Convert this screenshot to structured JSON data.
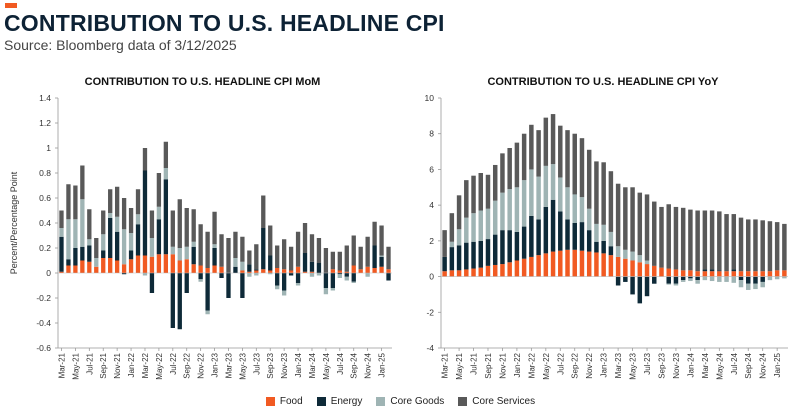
{
  "header": {
    "title": "CONTRIBUTION TO U.S. HEADLINE CPI",
    "subtitle": "Source: Bloomberg data of 3/12/2025"
  },
  "colors": {
    "accent": "#f15a22",
    "title": "#0d2235",
    "food": "#f15a22",
    "energy": "#0e2a38",
    "core_goods": "#9fb4b4",
    "core_services": "#595959"
  },
  "legend": [
    {
      "key": "food",
      "label": "Food",
      "color": "#f15a22"
    },
    {
      "key": "energy",
      "label": "Energy",
      "color": "#0e2a38"
    },
    {
      "key": "core_goods",
      "label": "Core Goods",
      "color": "#9fb4b4"
    },
    {
      "key": "core_services",
      "label": "Core Services",
      "color": "#595959"
    }
  ],
  "chart_data": [
    {
      "id": "mom",
      "type": "stacked-bar",
      "title": "CONTRIBUTION TO U.S. HEADLINE CPI MoM",
      "xlabel": "",
      "ylabel": "Percent/Percentage Point",
      "ylim": [
        -0.6,
        1.4
      ],
      "yticks": [
        -0.6,
        -0.4,
        -0.2,
        0,
        0.2,
        0.4,
        0.6,
        0.8,
        1,
        1.2,
        1.4
      ],
      "ytick_labels": [
        "-0.6",
        "-0.4",
        "-0.2",
        "0",
        "0.2",
        "0.4",
        "0.6",
        "0.8",
        "1",
        "1.2",
        "1.4"
      ],
      "categories": [
        "Mar-21",
        "Apr-21",
        "May-21",
        "Jun-21",
        "Jul-21",
        "Aug-21",
        "Sep-21",
        "Oct-21",
        "Nov-21",
        "Dec-21",
        "Jan-22",
        "Feb-22",
        "Mar-22",
        "Apr-22",
        "May-22",
        "Jun-22",
        "Jul-22",
        "Aug-22",
        "Sep-22",
        "Oct-22",
        "Nov-22",
        "Dec-22",
        "Jan-23",
        "Feb-23",
        "Mar-23",
        "Apr-23",
        "May-23",
        "Jun-23",
        "Jul-23",
        "Aug-23",
        "Sep-23",
        "Oct-23",
        "Nov-23",
        "Dec-23",
        "Jan-24",
        "Feb-24",
        "Mar-24",
        "Apr-24",
        "May-24",
        "Jun-24",
        "Jul-24",
        "Aug-24",
        "Sep-24",
        "Oct-24",
        "Nov-24",
        "Dec-24",
        "Jan-25",
        "Feb-25"
      ],
      "x_tick_labels": [
        "Mar-21",
        "May-21",
        "Jul-21",
        "Sep-21",
        "Nov-21",
        "Jan-22",
        "Mar-22",
        "May-22",
        "Jul-22",
        "Sep-22",
        "Nov-22",
        "Jan-23",
        "Mar-23",
        "May-23",
        "Jul-23",
        "Sep-23",
        "Nov-23",
        "Jan-24",
        "Mar-24",
        "May-24",
        "Jul-24",
        "Sep-24",
        "Nov-24",
        "Jan-25"
      ],
      "series": [
        {
          "name": "Food",
          "color": "#f15a22",
          "values": [
            0.01,
            0.06,
            0.06,
            0.1,
            0.09,
            0.05,
            0.12,
            0.12,
            0.1,
            0.07,
            0.11,
            0.14,
            0.14,
            0.13,
            0.15,
            0.15,
            0.15,
            0.1,
            0.11,
            0.07,
            0.06,
            0.04,
            0.06,
            0.05,
            0.0,
            0.0,
            0.02,
            0.01,
            0.02,
            0.03,
            0.02,
            0.04,
            0.03,
            0.02,
            0.05,
            0.01,
            0.01,
            0.0,
            0.0,
            0.03,
            0.02,
            0.01,
            0.06,
            0.03,
            0.05,
            0.04,
            0.05,
            0.03
          ]
        },
        {
          "name": "Energy",
          "color": "#0e2a38",
          "values": [
            0.28,
            0.05,
            0.14,
            0.11,
            0.13,
            0.0,
            0.06,
            0.32,
            0.23,
            -0.01,
            0.07,
            0.25,
            0.68,
            -0.16,
            0.28,
            0.6,
            -0.44,
            -0.45,
            -0.16,
            0.14,
            -0.05,
            -0.3,
            0.14,
            -0.04,
            -0.2,
            0.05,
            -0.2,
            0.06,
            0.01,
            0.33,
            0.12,
            -0.1,
            -0.14,
            -0.02,
            -0.08,
            0.15,
            0.08,
            0.08,
            -0.12,
            -0.12,
            -0.01,
            -0.03,
            -0.07,
            0.0,
            0.0,
            0.18,
            0.08,
            -0.06
          ]
        },
        {
          "name": "Core Goods",
          "color": "#9fb4b4",
          "values": [
            0.07,
            0.32,
            0.23,
            0.38,
            0.05,
            0.07,
            0.13,
            0.04,
            0.12,
            0.28,
            0.14,
            0.08,
            -0.02,
            0.15,
            0.1,
            0.09,
            0.06,
            0.1,
            0.1,
            0.04,
            -0.02,
            -0.03,
            0.03,
            0.0,
            0.0,
            0.07,
            0.07,
            -0.03,
            -0.02,
            0.0,
            -0.01,
            -0.03,
            -0.04,
            0.0,
            -0.02,
            0.0,
            -0.03,
            -0.02,
            -0.05,
            -0.02,
            -0.03,
            -0.03,
            -0.01,
            0.0,
            -0.03,
            0.0,
            0.01,
            0.0
          ]
        },
        {
          "name": "Core Services",
          "color": "#595959",
          "values": [
            0.14,
            0.28,
            0.27,
            0.27,
            0.24,
            0.16,
            0.19,
            0.19,
            0.24,
            0.25,
            0.2,
            0.2,
            0.18,
            0.22,
            0.27,
            0.21,
            0.29,
            0.39,
            0.31,
            0.26,
            0.33,
            0.29,
            0.26,
            0.26,
            0.28,
            0.21,
            0.2,
            0.11,
            0.2,
            0.26,
            0.24,
            0.18,
            0.24,
            0.19,
            0.28,
            0.24,
            0.22,
            0.2,
            0.2,
            0.14,
            0.15,
            0.21,
            0.24,
            0.18,
            0.24,
            0.19,
            0.24,
            0.18
          ]
        }
      ]
    },
    {
      "id": "yoy",
      "type": "stacked-bar",
      "title": "CONTRIBUTION TO U.S. HEADLINE CPI YoY",
      "xlabel": "",
      "ylabel": "",
      "ylim": [
        -4,
        10
      ],
      "yticks": [
        -4,
        -2,
        0,
        2,
        4,
        6,
        8,
        10
      ],
      "ytick_labels": [
        "-4",
        "-2",
        "0",
        "2",
        "4",
        "6",
        "8",
        "10"
      ],
      "categories": [
        "Mar-21",
        "Apr-21",
        "May-21",
        "Jun-21",
        "Jul-21",
        "Aug-21",
        "Sep-21",
        "Oct-21",
        "Nov-21",
        "Dec-21",
        "Jan-22",
        "Feb-22",
        "Mar-22",
        "Apr-22",
        "May-22",
        "Jun-22",
        "Jul-22",
        "Aug-22",
        "Sep-22",
        "Oct-22",
        "Nov-22",
        "Dec-22",
        "Jan-23",
        "Feb-23",
        "Mar-23",
        "Apr-23",
        "May-23",
        "Jun-23",
        "Jul-23",
        "Aug-23",
        "Sep-23",
        "Oct-23",
        "Nov-23",
        "Dec-23",
        "Jan-24",
        "Feb-24",
        "Mar-24",
        "Apr-24",
        "May-24",
        "Jun-24",
        "Jul-24",
        "Aug-24",
        "Sep-24",
        "Oct-24",
        "Nov-24",
        "Dec-24",
        "Jan-25",
        "Feb-25"
      ],
      "x_tick_labels": [
        "Mar-21",
        "May-21",
        "Jul-21",
        "Sep-21",
        "Nov-21",
        "Jan-22",
        "Mar-22",
        "May-22",
        "Jul-22",
        "Sep-22",
        "Nov-22",
        "Jan-23",
        "Mar-23",
        "May-23",
        "Jul-23",
        "Sep-23",
        "Nov-23",
        "Jan-24",
        "Mar-24",
        "May-24",
        "Jul-24",
        "Sep-24",
        "Nov-24",
        "Jan-25"
      ],
      "series": [
        {
          "name": "Food",
          "color": "#f15a22",
          "values": [
            0.3,
            0.35,
            0.35,
            0.4,
            0.45,
            0.5,
            0.6,
            0.65,
            0.7,
            0.8,
            0.9,
            1.0,
            1.1,
            1.2,
            1.3,
            1.4,
            1.45,
            1.5,
            1.5,
            1.45,
            1.4,
            1.35,
            1.3,
            1.2,
            1.1,
            1.0,
            0.9,
            0.8,
            0.7,
            0.6,
            0.5,
            0.45,
            0.4,
            0.35,
            0.35,
            0.3,
            0.3,
            0.3,
            0.3,
            0.3,
            0.3,
            0.3,
            0.3,
            0.3,
            0.3,
            0.3,
            0.35,
            0.35
          ]
        },
        {
          "name": "Energy",
          "color": "#0e2a38",
          "values": [
            0.8,
            1.3,
            1.4,
            1.5,
            1.5,
            1.5,
            1.5,
            1.7,
            1.9,
            1.8,
            1.6,
            1.8,
            2.3,
            2.0,
            2.6,
            2.9,
            2.2,
            1.7,
            1.5,
            1.6,
            1.2,
            0.6,
            0.7,
            0.5,
            -0.5,
            -0.3,
            -1.0,
            -1.5,
            -1.1,
            -0.4,
            0.0,
            -0.4,
            -0.4,
            -0.2,
            -0.1,
            -0.2,
            0.1,
            0.1,
            0.05,
            0.0,
            0.1,
            -0.2,
            -0.4,
            -0.4,
            -0.3,
            0.0,
            0.0,
            0.0
          ]
        },
        {
          "name": "Core Goods",
          "color": "#9fb4b4",
          "values": [
            0.0,
            0.3,
            0.9,
            1.4,
            1.6,
            1.7,
            1.7,
            1.9,
            2.1,
            2.3,
            2.5,
            2.6,
            2.6,
            2.4,
            2.3,
            2.0,
            1.9,
            1.8,
            1.6,
            1.4,
            1.2,
            1.0,
            0.9,
            0.8,
            0.6,
            0.5,
            0.5,
            0.4,
            0.2,
            0.0,
            0.0,
            -0.05,
            -0.1,
            -0.1,
            -0.15,
            -0.2,
            -0.2,
            -0.25,
            -0.3,
            -0.3,
            -0.35,
            -0.4,
            -0.35,
            -0.3,
            -0.3,
            -0.2,
            -0.15,
            -0.1
          ]
        },
        {
          "name": "Core Services",
          "color": "#595959",
          "values": [
            1.5,
            1.6,
            1.9,
            2.1,
            2.1,
            2.1,
            1.9,
            2.0,
            2.2,
            2.3,
            2.5,
            2.6,
            2.5,
            2.6,
            2.7,
            2.8,
            2.9,
            3.2,
            3.4,
            3.3,
            3.3,
            3.5,
            3.5,
            3.4,
            3.5,
            3.5,
            3.6,
            3.5,
            3.7,
            3.6,
            3.4,
            3.6,
            3.5,
            3.5,
            3.4,
            3.4,
            3.3,
            3.3,
            3.3,
            3.2,
            3.1,
            3.0,
            2.9,
            2.9,
            2.85,
            2.8,
            2.7,
            2.6
          ]
        }
      ]
    }
  ]
}
